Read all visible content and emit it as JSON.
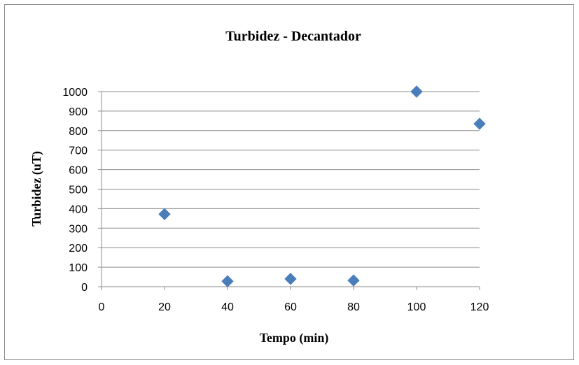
{
  "chart_data": {
    "type": "scatter",
    "title": "Turbidez - Decantador",
    "xlabel": "Tempo (min)",
    "ylabel": "Turbidez (uT)",
    "xlim": [
      0,
      120
    ],
    "ylim": [
      0,
      1000
    ],
    "xticks": [
      0,
      20,
      40,
      60,
      80,
      100,
      120
    ],
    "yticks": [
      0,
      100,
      200,
      300,
      400,
      500,
      600,
      700,
      800,
      900,
      1000
    ],
    "grid": "horizontal",
    "legend": "none",
    "marker": "diamond",
    "marker_color": "#4a7ebb",
    "series": [
      {
        "points": [
          {
            "x": 20,
            "y": 372
          },
          {
            "x": 40,
            "y": 28
          },
          {
            "x": 60,
            "y": 40
          },
          {
            "x": 80,
            "y": 32
          },
          {
            "x": 100,
            "y": 1000
          },
          {
            "x": 120,
            "y": 835
          }
        ]
      }
    ]
  }
}
